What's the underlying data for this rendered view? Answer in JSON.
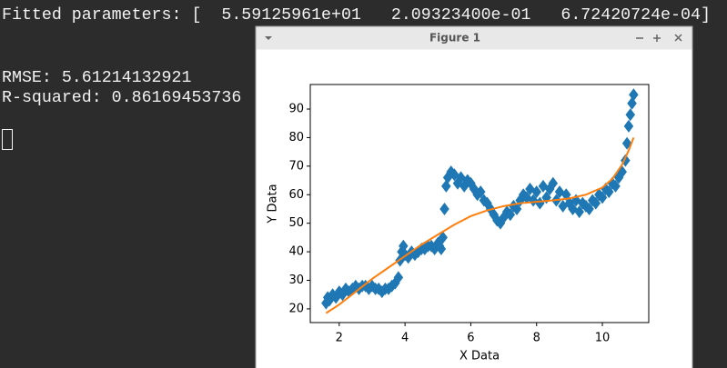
{
  "terminal": {
    "lines": [
      "Fitted parameters: [  5.59125961e+01   2.09323400e-01   6.72420724e-04]",
      "RMSE: 5.61214132921",
      "R-squared: 0.86169453736"
    ]
  },
  "window": {
    "title": "Figure 1"
  },
  "chart_data": {
    "type": "scatter",
    "xlabel": "X Data",
    "ylabel": "Y Data",
    "xlim": [
      1.12,
      11.41
    ],
    "ylim": [
      15.2,
      98.6
    ],
    "xticks": [
      2,
      4,
      6,
      8,
      10
    ],
    "yticks": [
      20,
      30,
      40,
      50,
      60,
      70,
      80,
      90
    ],
    "series": [
      {
        "style": "marker",
        "color": "#1f77b4",
        "x": [
          1.6,
          1.65,
          1.7,
          1.8,
          1.9,
          2.0,
          2.1,
          2.2,
          2.3,
          2.4,
          2.5,
          2.6,
          2.7,
          2.8,
          2.9,
          3.0,
          3.1,
          3.2,
          3.3,
          3.4,
          3.5,
          3.6,
          3.7,
          3.8,
          3.85,
          3.9,
          3.95,
          4.0,
          4.1,
          4.2,
          4.3,
          4.4,
          4.5,
          4.6,
          4.7,
          4.8,
          4.9,
          5.0,
          5.05,
          5.1,
          5.15,
          5.2,
          5.25,
          5.3,
          5.4,
          5.5,
          5.6,
          5.7,
          5.8,
          5.9,
          6.0,
          6.1,
          6.2,
          6.3,
          6.4,
          6.5,
          6.6,
          6.7,
          6.8,
          6.9,
          7.0,
          7.1,
          7.2,
          7.3,
          7.4,
          7.5,
          7.6,
          7.7,
          7.8,
          7.9,
          8.0,
          8.1,
          8.2,
          8.3,
          8.4,
          8.5,
          8.6,
          8.7,
          8.8,
          8.9,
          9.0,
          9.1,
          9.2,
          9.3,
          9.4,
          9.5,
          9.6,
          9.7,
          9.8,
          9.9,
          10.0,
          10.1,
          10.2,
          10.3,
          10.4,
          10.5,
          10.6,
          10.7,
          10.75,
          10.8,
          10.85,
          10.9,
          10.95
        ],
        "values": [
          22,
          24,
          23,
          25,
          24,
          26,
          25,
          27,
          26,
          27,
          28,
          27,
          28,
          28,
          27,
          28,
          27,
          27,
          26,
          27,
          27,
          28,
          29,
          31,
          37,
          40,
          42,
          39,
          38,
          40,
          39,
          40,
          41,
          41,
          42,
          42,
          41,
          43,
          42,
          41,
          45,
          55,
          63,
          66,
          68,
          67,
          64,
          66,
          63,
          65,
          64,
          62,
          60,
          61,
          58,
          57,
          55,
          53,
          51,
          50,
          52,
          54,
          53,
          56,
          55,
          58,
          60,
          59,
          62,
          58,
          61,
          57,
          63,
          59,
          62,
          64,
          58,
          61,
          56,
          60,
          57,
          55,
          58,
          54,
          57,
          56,
          55,
          58,
          57,
          60,
          59,
          62,
          61,
          64,
          63,
          66,
          68,
          72,
          78,
          84,
          88,
          92,
          95
        ]
      },
      {
        "style": "line",
        "color": "#ff7f0e",
        "x": [
          1.6,
          2,
          2.5,
          3,
          3.5,
          4,
          4.5,
          5,
          5.5,
          6,
          6.5,
          7,
          7.5,
          8,
          8.5,
          9,
          9.5,
          10,
          10.3,
          10.6,
          10.8,
          10.95
        ],
        "values": [
          18.5,
          21.5,
          26,
          30.5,
          34.5,
          38.5,
          42.5,
          46,
          49.5,
          52.5,
          54.5,
          56,
          57,
          57.5,
          58,
          58.7,
          60,
          62.5,
          65.5,
          70.5,
          75.5,
          80
        ]
      }
    ]
  }
}
